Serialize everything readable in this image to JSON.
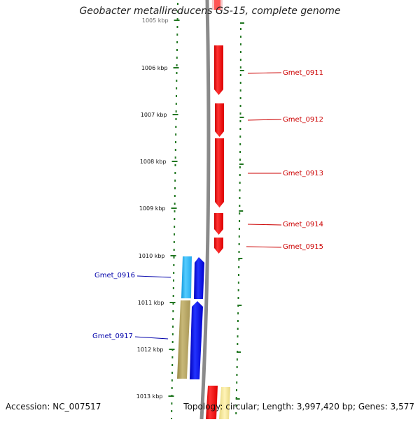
{
  "title": "Geobacter metallireducens GS-15, complete genome",
  "accession_label": "Accession:",
  "accession": "NC_007517",
  "topology_label": "Topology:",
  "topology": "circular",
  "length_label": "Length:",
  "length": "3,997,420 bp",
  "genes_label": "Genes:",
  "genes": "3,577",
  "scale": {
    "unit": "kbp",
    "ticks": [
      "1005 kbp",
      "1006 kbp",
      "1007 kbp",
      "1008 kbp",
      "1009 kbp",
      "1010 kbp",
      "1011 kbp",
      "1012 kbp",
      "1013 kbp"
    ]
  },
  "colors": {
    "forward_gene": "#ff0000",
    "reverse_gene": "#0000ff",
    "reverse_gene_alt": "#33bbee",
    "reverse_gene_olive": "#aa9955",
    "forward_gene_pale": "#f0e090",
    "backbone": "#888888",
    "tick": "#227722",
    "forward_label": "#cc0000",
    "reverse_label": "#0000aa"
  },
  "genes_list": [
    {
      "id": "Gmet_0911",
      "strand": "forward"
    },
    {
      "id": "Gmet_0912",
      "strand": "forward"
    },
    {
      "id": "Gmet_0913",
      "strand": "forward"
    },
    {
      "id": "Gmet_0914",
      "strand": "forward"
    },
    {
      "id": "Gmet_0915",
      "strand": "forward"
    },
    {
      "id": "Gmet_0916",
      "strand": "reverse"
    },
    {
      "id": "Gmet_0917",
      "strand": "reverse"
    }
  ]
}
